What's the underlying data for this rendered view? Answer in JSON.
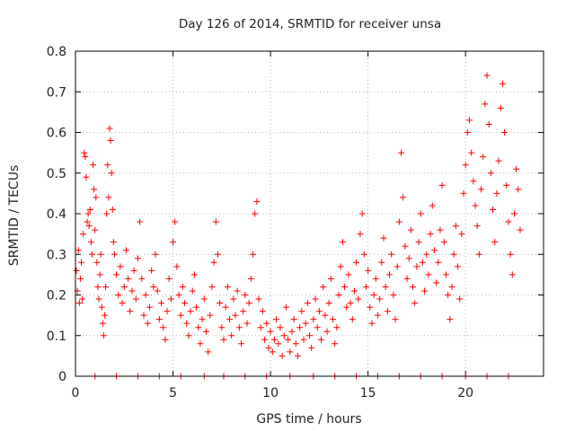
{
  "chart_data": {
    "type": "scatter",
    "title": "Day 126 of 2014, SRMTID for receiver unsa",
    "xlabel": "GPS time / hours",
    "ylabel": "SRMTID / TECUs",
    "xlim": [
      0,
      24
    ],
    "ylim": [
      0,
      0.8
    ],
    "xticks": [
      0,
      5,
      10,
      15,
      20
    ],
    "yticks": [
      0,
      0.1,
      0.2,
      0.3,
      0.4,
      0.5,
      0.6,
      0.7,
      0.8
    ],
    "grid": true,
    "legend": "none",
    "marker": "plus",
    "color": "#ff0000",
    "series": [
      {
        "name": "SRMTID",
        "points": [
          [
            0.05,
            0.26
          ],
          [
            0.1,
            0.21
          ],
          [
            0.15,
            0.31
          ],
          [
            0.2,
            0.18
          ],
          [
            0.25,
            0.24
          ],
          [
            0.3,
            0.28
          ],
          [
            0.35,
            0.19
          ],
          [
            0.4,
            0.35
          ],
          [
            0.45,
            0.55
          ],
          [
            0.5,
            0.54
          ],
          [
            0.55,
            0.49
          ],
          [
            0.6,
            0.38
          ],
          [
            0.65,
            0.4
          ],
          [
            0.7,
            0.37
          ],
          [
            0.75,
            0.41
          ],
          [
            0.8,
            0.33
          ],
          [
            0.85,
            0.3
          ],
          [
            0.9,
            0.52
          ],
          [
            0.95,
            0.46
          ],
          [
            1.0,
            0.36
          ],
          [
            1.05,
            0.44
          ],
          [
            1.1,
            0.28
          ],
          [
            1.15,
            0.22
          ],
          [
            1.2,
            0.19
          ],
          [
            1.25,
            0.25
          ],
          [
            1.3,
            0.3
          ],
          [
            1.35,
            0.17
          ],
          [
            1.4,
            0.13
          ],
          [
            1.45,
            0.1
          ],
          [
            1.5,
            0.15
          ],
          [
            1.55,
            0.22
          ],
          [
            1.6,
            0.4
          ],
          [
            1.65,
            0.52
          ],
          [
            1.7,
            0.44
          ],
          [
            1.75,
            0.61
          ],
          [
            1.8,
            0.58
          ],
          [
            1.85,
            0.5
          ],
          [
            1.9,
            0.41
          ],
          [
            1.95,
            0.33
          ],
          [
            2.0,
            0.3
          ],
          [
            2.1,
            0.25
          ],
          [
            2.2,
            0.2
          ],
          [
            2.3,
            0.27
          ],
          [
            2.4,
            0.18
          ],
          [
            2.5,
            0.22
          ],
          [
            2.6,
            0.31
          ],
          [
            2.7,
            0.24
          ],
          [
            2.8,
            0.16
          ],
          [
            2.9,
            0.21
          ],
          [
            3.0,
            0.26
          ],
          [
            3.1,
            0.19
          ],
          [
            3.2,
            0.29
          ],
          [
            3.3,
            0.38
          ],
          [
            3.4,
            0.24
          ],
          [
            3.5,
            0.15
          ],
          [
            3.6,
            0.2
          ],
          [
            3.7,
            0.13
          ],
          [
            3.8,
            0.17
          ],
          [
            3.9,
            0.26
          ],
          [
            4.0,
            0.22
          ],
          [
            4.1,
            0.3
          ],
          [
            4.2,
            0.21
          ],
          [
            4.3,
            0.14
          ],
          [
            4.4,
            0.18
          ],
          [
            4.5,
            0.12
          ],
          [
            4.6,
            0.09
          ],
          [
            4.7,
            0.16
          ],
          [
            4.8,
            0.24
          ],
          [
            4.9,
            0.19
          ],
          [
            5.0,
            0.33
          ],
          [
            5.1,
            0.38
          ],
          [
            5.2,
            0.27
          ],
          [
            5.3,
            0.2
          ],
          [
            5.4,
            0.15
          ],
          [
            5.5,
            0.22
          ],
          [
            5.6,
            0.18
          ],
          [
            5.7,
            0.13
          ],
          [
            5.8,
            0.1
          ],
          [
            5.9,
            0.16
          ],
          [
            6.0,
            0.21
          ],
          [
            6.1,
            0.25
          ],
          [
            6.2,
            0.17
          ],
          [
            6.3,
            0.12
          ],
          [
            6.4,
            0.08
          ],
          [
            6.5,
            0.14
          ],
          [
            6.6,
            0.19
          ],
          [
            6.7,
            0.11
          ],
          [
            6.8,
            0.06
          ],
          [
            6.9,
            0.15
          ],
          [
            7.0,
            0.22
          ],
          [
            7.1,
            0.28
          ],
          [
            7.2,
            0.38
          ],
          [
            7.3,
            0.3
          ],
          [
            7.4,
            0.18
          ],
          [
            7.5,
            0.12
          ],
          [
            7.6,
            0.09
          ],
          [
            7.7,
            0.17
          ],
          [
            7.8,
            0.22
          ],
          [
            7.9,
            0.14
          ],
          [
            8.0,
            0.1
          ],
          [
            8.1,
            0.19
          ],
          [
            8.2,
            0.15
          ],
          [
            8.3,
            0.21
          ],
          [
            8.4,
            0.12
          ],
          [
            8.5,
            0.08
          ],
          [
            8.6,
            0.16
          ],
          [
            8.7,
            0.2
          ],
          [
            8.8,
            0.13
          ],
          [
            8.9,
            0.18
          ],
          [
            9.0,
            0.24
          ],
          [
            9.1,
            0.3
          ],
          [
            9.2,
            0.4
          ],
          [
            9.3,
            0.43
          ],
          [
            9.4,
            0.19
          ],
          [
            9.5,
            0.12
          ],
          [
            9.6,
            0.16
          ],
          [
            9.7,
            0.09
          ],
          [
            9.8,
            0.13
          ],
          [
            9.9,
            0.07
          ],
          [
            10.0,
            0.11
          ],
          [
            10.1,
            0.06
          ],
          [
            10.2,
            0.09
          ],
          [
            10.3,
            0.14
          ],
          [
            10.4,
            0.08
          ],
          [
            10.5,
            0.12
          ],
          [
            10.6,
            0.05
          ],
          [
            10.7,
            0.1
          ],
          [
            10.8,
            0.17
          ],
          [
            10.9,
            0.09
          ],
          [
            11.0,
            0.06
          ],
          [
            11.1,
            0.11
          ],
          [
            11.2,
            0.14
          ],
          [
            11.3,
            0.08
          ],
          [
            11.4,
            0.05
          ],
          [
            11.5,
            0.12
          ],
          [
            11.6,
            0.16
          ],
          [
            11.7,
            0.09
          ],
          [
            11.8,
            0.13
          ],
          [
            11.9,
            0.18
          ],
          [
            12.0,
            0.1
          ],
          [
            12.1,
            0.07
          ],
          [
            12.2,
            0.14
          ],
          [
            12.3,
            0.19
          ],
          [
            12.4,
            0.12
          ],
          [
            12.5,
            0.16
          ],
          [
            12.6,
            0.09
          ],
          [
            12.7,
            0.22
          ],
          [
            12.8,
            0.15
          ],
          [
            12.9,
            0.11
          ],
          [
            13.0,
            0.18
          ],
          [
            13.1,
            0.24
          ],
          [
            13.2,
            0.14
          ],
          [
            13.3,
            0.08
          ],
          [
            13.4,
            0.12
          ],
          [
            13.5,
            0.2
          ],
          [
            13.6,
            0.27
          ],
          [
            13.7,
            0.33
          ],
          [
            13.8,
            0.22
          ],
          [
            13.9,
            0.17
          ],
          [
            14.0,
            0.25
          ],
          [
            14.1,
            0.18
          ],
          [
            14.2,
            0.14
          ],
          [
            14.3,
            0.21
          ],
          [
            14.4,
            0.28
          ],
          [
            14.5,
            0.19
          ],
          [
            14.6,
            0.35
          ],
          [
            14.7,
            0.4
          ],
          [
            14.8,
            0.3
          ],
          [
            14.9,
            0.22
          ],
          [
            15.0,
            0.26
          ],
          [
            15.1,
            0.17
          ],
          [
            15.2,
            0.13
          ],
          [
            15.3,
            0.2
          ],
          [
            15.4,
            0.24
          ],
          [
            15.5,
            0.15
          ],
          [
            15.6,
            0.19
          ],
          [
            15.7,
            0.28
          ],
          [
            15.8,
            0.34
          ],
          [
            15.9,
            0.22
          ],
          [
            16.0,
            0.16
          ],
          [
            16.1,
            0.25
          ],
          [
            16.2,
            0.3
          ],
          [
            16.3,
            0.2
          ],
          [
            16.4,
            0.14
          ],
          [
            16.5,
            0.27
          ],
          [
            16.6,
            0.38
          ],
          [
            16.7,
            0.55
          ],
          [
            16.8,
            0.44
          ],
          [
            16.9,
            0.32
          ],
          [
            17.0,
            0.24
          ],
          [
            17.1,
            0.29
          ],
          [
            17.2,
            0.36
          ],
          [
            17.3,
            0.22
          ],
          [
            17.4,
            0.18
          ],
          [
            17.5,
            0.27
          ],
          [
            17.6,
            0.33
          ],
          [
            17.7,
            0.4
          ],
          [
            17.8,
            0.28
          ],
          [
            17.9,
            0.21
          ],
          [
            18.0,
            0.3
          ],
          [
            18.1,
            0.25
          ],
          [
            18.2,
            0.35
          ],
          [
            18.3,
            0.42
          ],
          [
            18.4,
            0.31
          ],
          [
            18.5,
            0.23
          ],
          [
            18.6,
            0.28
          ],
          [
            18.7,
            0.36
          ],
          [
            18.8,
            0.47
          ],
          [
            18.9,
            0.33
          ],
          [
            19.0,
            0.25
          ],
          [
            19.1,
            0.2
          ],
          [
            19.2,
            0.14
          ],
          [
            19.3,
            0.22
          ],
          [
            19.4,
            0.3
          ],
          [
            19.5,
            0.37
          ],
          [
            19.6,
            0.27
          ],
          [
            19.7,
            0.19
          ],
          [
            19.8,
            0.35
          ],
          [
            19.9,
            0.45
          ],
          [
            20.0,
            0.52
          ],
          [
            20.1,
            0.6
          ],
          [
            20.2,
            0.63
          ],
          [
            20.3,
            0.55
          ],
          [
            20.4,
            0.48
          ],
          [
            20.5,
            0.42
          ],
          [
            20.6,
            0.37
          ],
          [
            20.7,
            0.3
          ],
          [
            20.8,
            0.46
          ],
          [
            20.9,
            0.54
          ],
          [
            21.0,
            0.67
          ],
          [
            21.1,
            0.74
          ],
          [
            21.2,
            0.62
          ],
          [
            21.3,
            0.5
          ],
          [
            21.4,
            0.41
          ],
          [
            21.5,
            0.33
          ],
          [
            21.6,
            0.45
          ],
          [
            21.7,
            0.53
          ],
          [
            21.8,
            0.66
          ],
          [
            21.9,
            0.72
          ],
          [
            22.0,
            0.6
          ],
          [
            22.1,
            0.47
          ],
          [
            22.2,
            0.38
          ],
          [
            22.3,
            0.3
          ],
          [
            22.4,
            0.25
          ],
          [
            22.5,
            0.4
          ],
          [
            22.6,
            0.51
          ],
          [
            22.7,
            0.46
          ],
          [
            22.8,
            0.36
          ]
        ]
      },
      {
        "name": "zero-level markers",
        "points": [
          [
            1.0,
            0
          ],
          [
            2.1,
            0
          ],
          [
            3.2,
            0
          ],
          [
            4.3,
            0
          ],
          [
            5.4,
            0
          ],
          [
            6.6,
            0
          ],
          [
            7.6,
            0
          ],
          [
            8.7,
            0
          ],
          [
            9.8,
            0
          ],
          [
            11.0,
            0
          ],
          [
            12.2,
            0
          ],
          [
            13.3,
            0
          ],
          [
            14.4,
            0
          ],
          [
            15.5,
            0
          ],
          [
            16.6,
            0
          ],
          [
            17.7,
            0
          ],
          [
            18.8,
            0
          ],
          [
            20.0,
            0
          ],
          [
            21.1,
            0
          ],
          [
            22.2,
            0
          ]
        ]
      }
    ]
  }
}
